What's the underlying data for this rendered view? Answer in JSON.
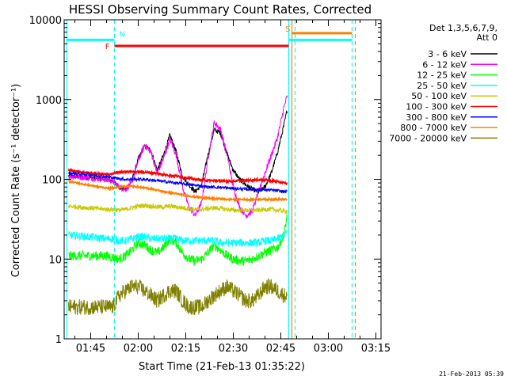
{
  "chart_data": {
    "type": "line",
    "title": "HESSI Observing Summary Count Rates, Corrected",
    "xlabel": "Start Time (21-Feb-13 01:35:22)",
    "ylabel": "Corrected Count Rate (s⁻¹ detector⁻¹)",
    "y_scale": "log",
    "ylim": [
      1,
      10000
    ],
    "xlim_minutes": [
      1.63,
      101.63
    ],
    "x_ticks": [
      {
        "label": "01:45",
        "min": 105
      },
      {
        "label": "02:00",
        "min": 120
      },
      {
        "label": "02:15",
        "min": 135
      },
      {
        "label": "02:30",
        "min": 150
      },
      {
        "label": "02:45",
        "min": 165
      },
      {
        "label": "03:00",
        "min": 180
      },
      {
        "label": "03:15",
        "min": 195
      }
    ],
    "y_ticks": [
      {
        "label": "1",
        "value": 1
      },
      {
        "label": "10",
        "value": 10
      },
      {
        "label": "100",
        "value": 100
      },
      {
        "label": "1000",
        "value": 1000
      },
      {
        "label": "10000",
        "value": 10000
      }
    ],
    "legend_title": [
      "Det 1,3,5,6,7,9,",
      "Att 0"
    ],
    "legend_placement": "right",
    "series": [
      {
        "name": "3 - 6 keV",
        "color": "#000000",
        "t": [
          98,
          104,
          110,
          112,
          114,
          116,
          118,
          120,
          122,
          124,
          126,
          128,
          130,
          132,
          134,
          136,
          138,
          140,
          142,
          144,
          146,
          148,
          150,
          152,
          154,
          156,
          158,
          160,
          162,
          164,
          166,
          167
        ],
        "v": [
          110,
          105,
          100,
          95,
          80,
          75,
          95,
          180,
          260,
          230,
          130,
          200,
          360,
          220,
          110,
          85,
          70,
          85,
          200,
          420,
          380,
          210,
          130,
          100,
          85,
          75,
          70,
          80,
          120,
          220,
          480,
          750
        ]
      },
      {
        "name": "6 - 12 keV",
        "color": "#ff00ff",
        "t": [
          98,
          104,
          110,
          112,
          114,
          116,
          118,
          120,
          122,
          124,
          126,
          128,
          130,
          132,
          134,
          136,
          138,
          140,
          142,
          144,
          146,
          148,
          150,
          152,
          154,
          156,
          158,
          160,
          162,
          164,
          166,
          167
        ],
        "v": [
          110,
          105,
          100,
          95,
          80,
          75,
          90,
          170,
          270,
          220,
          120,
          180,
          320,
          200,
          80,
          45,
          35,
          50,
          180,
          520,
          420,
          210,
          80,
          45,
          35,
          40,
          70,
          120,
          200,
          340,
          800,
          1100
        ]
      },
      {
        "name": "12 - 25 keV",
        "color": "#00ff00",
        "t": [
          98,
          104,
          110,
          112,
          114,
          116,
          118,
          120,
          122,
          124,
          126,
          128,
          130,
          132,
          134,
          136,
          138,
          140,
          142,
          144,
          146,
          148,
          150,
          152,
          154,
          156,
          158,
          160,
          162,
          164,
          166,
          167
        ],
        "v": [
          11,
          11,
          11,
          10.5,
          10,
          11,
          13,
          16,
          15,
          13,
          12,
          14,
          18,
          16,
          12,
          10,
          9.5,
          10,
          12,
          15,
          13,
          11,
          10,
          9.5,
          9.5,
          10,
          11,
          12,
          13,
          14,
          20,
          35
        ]
      },
      {
        "name": "25 - 50 keV",
        "color": "#00ffff",
        "t": [
          98,
          104,
          110,
          112,
          114,
          116,
          118,
          120,
          122,
          124,
          126,
          128,
          130,
          132,
          134,
          136,
          138,
          140,
          142,
          144,
          146,
          148,
          150,
          152,
          154,
          156,
          158,
          160,
          162,
          164,
          166,
          167
        ],
        "v": [
          20,
          19,
          18,
          18,
          17,
          17,
          18,
          19,
          19,
          18,
          18,
          18,
          18,
          18,
          17,
          17,
          17,
          17,
          17,
          17,
          16,
          16,
          16,
          16,
          16,
          16,
          16,
          17,
          17,
          18,
          20,
          22
        ]
      },
      {
        "name": "50 - 100 keV",
        "color": "#c8c800",
        "t": [
          98,
          104,
          110,
          112,
          114,
          116,
          118,
          120,
          122,
          124,
          126,
          128,
          130,
          132,
          134,
          136,
          138,
          140,
          142,
          144,
          146,
          148,
          150,
          152,
          154,
          156,
          158,
          160,
          162,
          164,
          166,
          167
        ],
        "v": [
          46,
          44,
          42,
          42,
          41,
          42,
          44,
          46,
          47,
          46,
          45,
          45,
          46,
          45,
          44,
          43,
          42,
          42,
          43,
          44,
          43,
          42,
          41,
          41,
          41,
          41,
          41,
          42,
          42,
          41,
          40,
          40
        ]
      },
      {
        "name": "100 - 300 keV",
        "color": "#ff0000",
        "t": [
          98,
          104,
          110,
          112,
          114,
          116,
          118,
          120,
          122,
          124,
          126,
          128,
          130,
          132,
          134,
          136,
          138,
          140,
          142,
          144,
          146,
          148,
          150,
          152,
          154,
          156,
          158,
          160,
          162,
          164,
          166,
          167
        ],
        "v": [
          130,
          120,
          115,
          118,
          122,
          125,
          125,
          124,
          123,
          121,
          118,
          115,
          112,
          110,
          106,
          103,
          100,
          98,
          97,
          96,
          95,
          95,
          95,
          96,
          97,
          98,
          99,
          98,
          96,
          93,
          90,
          88
        ]
      },
      {
        "name": "300 - 800 keV",
        "color": "#0000ff",
        "t": [
          98,
          104,
          110,
          112,
          114,
          116,
          118,
          120,
          122,
          124,
          126,
          128,
          130,
          132,
          134,
          136,
          138,
          140,
          142,
          144,
          146,
          148,
          150,
          152,
          154,
          156,
          158,
          160,
          162,
          164,
          166,
          167
        ],
        "v": [
          120,
          115,
          108,
          105,
          102,
          100,
          100,
          100,
          100,
          98,
          96,
          94,
          92,
          90,
          88,
          86,
          84,
          82,
          80,
          80,
          79,
          78,
          77,
          76,
          75,
          75,
          74,
          74,
          73,
          72,
          70,
          70
        ]
      },
      {
        "name": "800 - 7000 keV",
        "color": "#ff8000",
        "t": [
          98,
          104,
          110,
          112,
          114,
          116,
          118,
          120,
          122,
          124,
          126,
          128,
          130,
          132,
          134,
          136,
          138,
          140,
          142,
          144,
          146,
          148,
          150,
          152,
          154,
          156,
          158,
          160,
          162,
          164,
          166,
          167
        ],
        "v": [
          95,
          85,
          78,
          78,
          80,
          82,
          82,
          80,
          78,
          76,
          73,
          70,
          68,
          66,
          64,
          62,
          60,
          59,
          58,
          57,
          57,
          56,
          56,
          56,
          56,
          56,
          56,
          56,
          56,
          56,
          56,
          56
        ]
      },
      {
        "name": "7000 - 20000 keV",
        "color": "#808000",
        "t": [
          98,
          104,
          110,
          112,
          114,
          116,
          118,
          120,
          122,
          124,
          126,
          128,
          130,
          132,
          134,
          136,
          138,
          140,
          142,
          144,
          146,
          148,
          150,
          152,
          154,
          156,
          158,
          160,
          162,
          164,
          166,
          167
        ],
        "v": [
          2.5,
          2.5,
          2.5,
          2.5,
          3.5,
          4,
          4.5,
          4.5,
          4,
          3.5,
          3,
          3.5,
          4,
          4,
          3,
          2.5,
          2.5,
          2.5,
          3,
          3.5,
          4,
          4.5,
          4,
          3.5,
          3,
          3,
          3.5,
          4.5,
          4.5,
          4,
          3.5,
          3.5
        ]
      }
    ],
    "flags": [
      {
        "label": "N",
        "color": "#00ffff",
        "level": 5600,
        "t_start": 97.5,
        "t_end": 112.5,
        "t_start2": 167.5,
        "t_end2": 187.5
      },
      {
        "label": "F",
        "color": "#ff0000",
        "level": 4700,
        "t_start": 112.5,
        "t_end": 167.5
      },
      {
        "label": "S",
        "color": "#ff8000",
        "level": 6800,
        "t_start": 168.5,
        "t_end": 187.5
      }
    ],
    "vlines": [
      {
        "t": 97.5,
        "color": "#00ffff",
        "style": "solid"
      },
      {
        "t": 112.5,
        "color": "#00ffff",
        "style": "dashed"
      },
      {
        "t": 167.5,
        "color": "#00ffff",
        "style": "solid"
      },
      {
        "t": 168.5,
        "color": "#ff8000",
        "style": "solid"
      },
      {
        "t": 169.5,
        "color": "#00ffff",
        "style": "dashed"
      },
      {
        "t": 187.5,
        "color": "#00ffff",
        "style": "dashed"
      },
      {
        "t": 188.5,
        "color": "#ff8000",
        "style": "dashed"
      }
    ]
  },
  "footer": {
    "timestamp": "21-Feb-2013 05:39"
  }
}
